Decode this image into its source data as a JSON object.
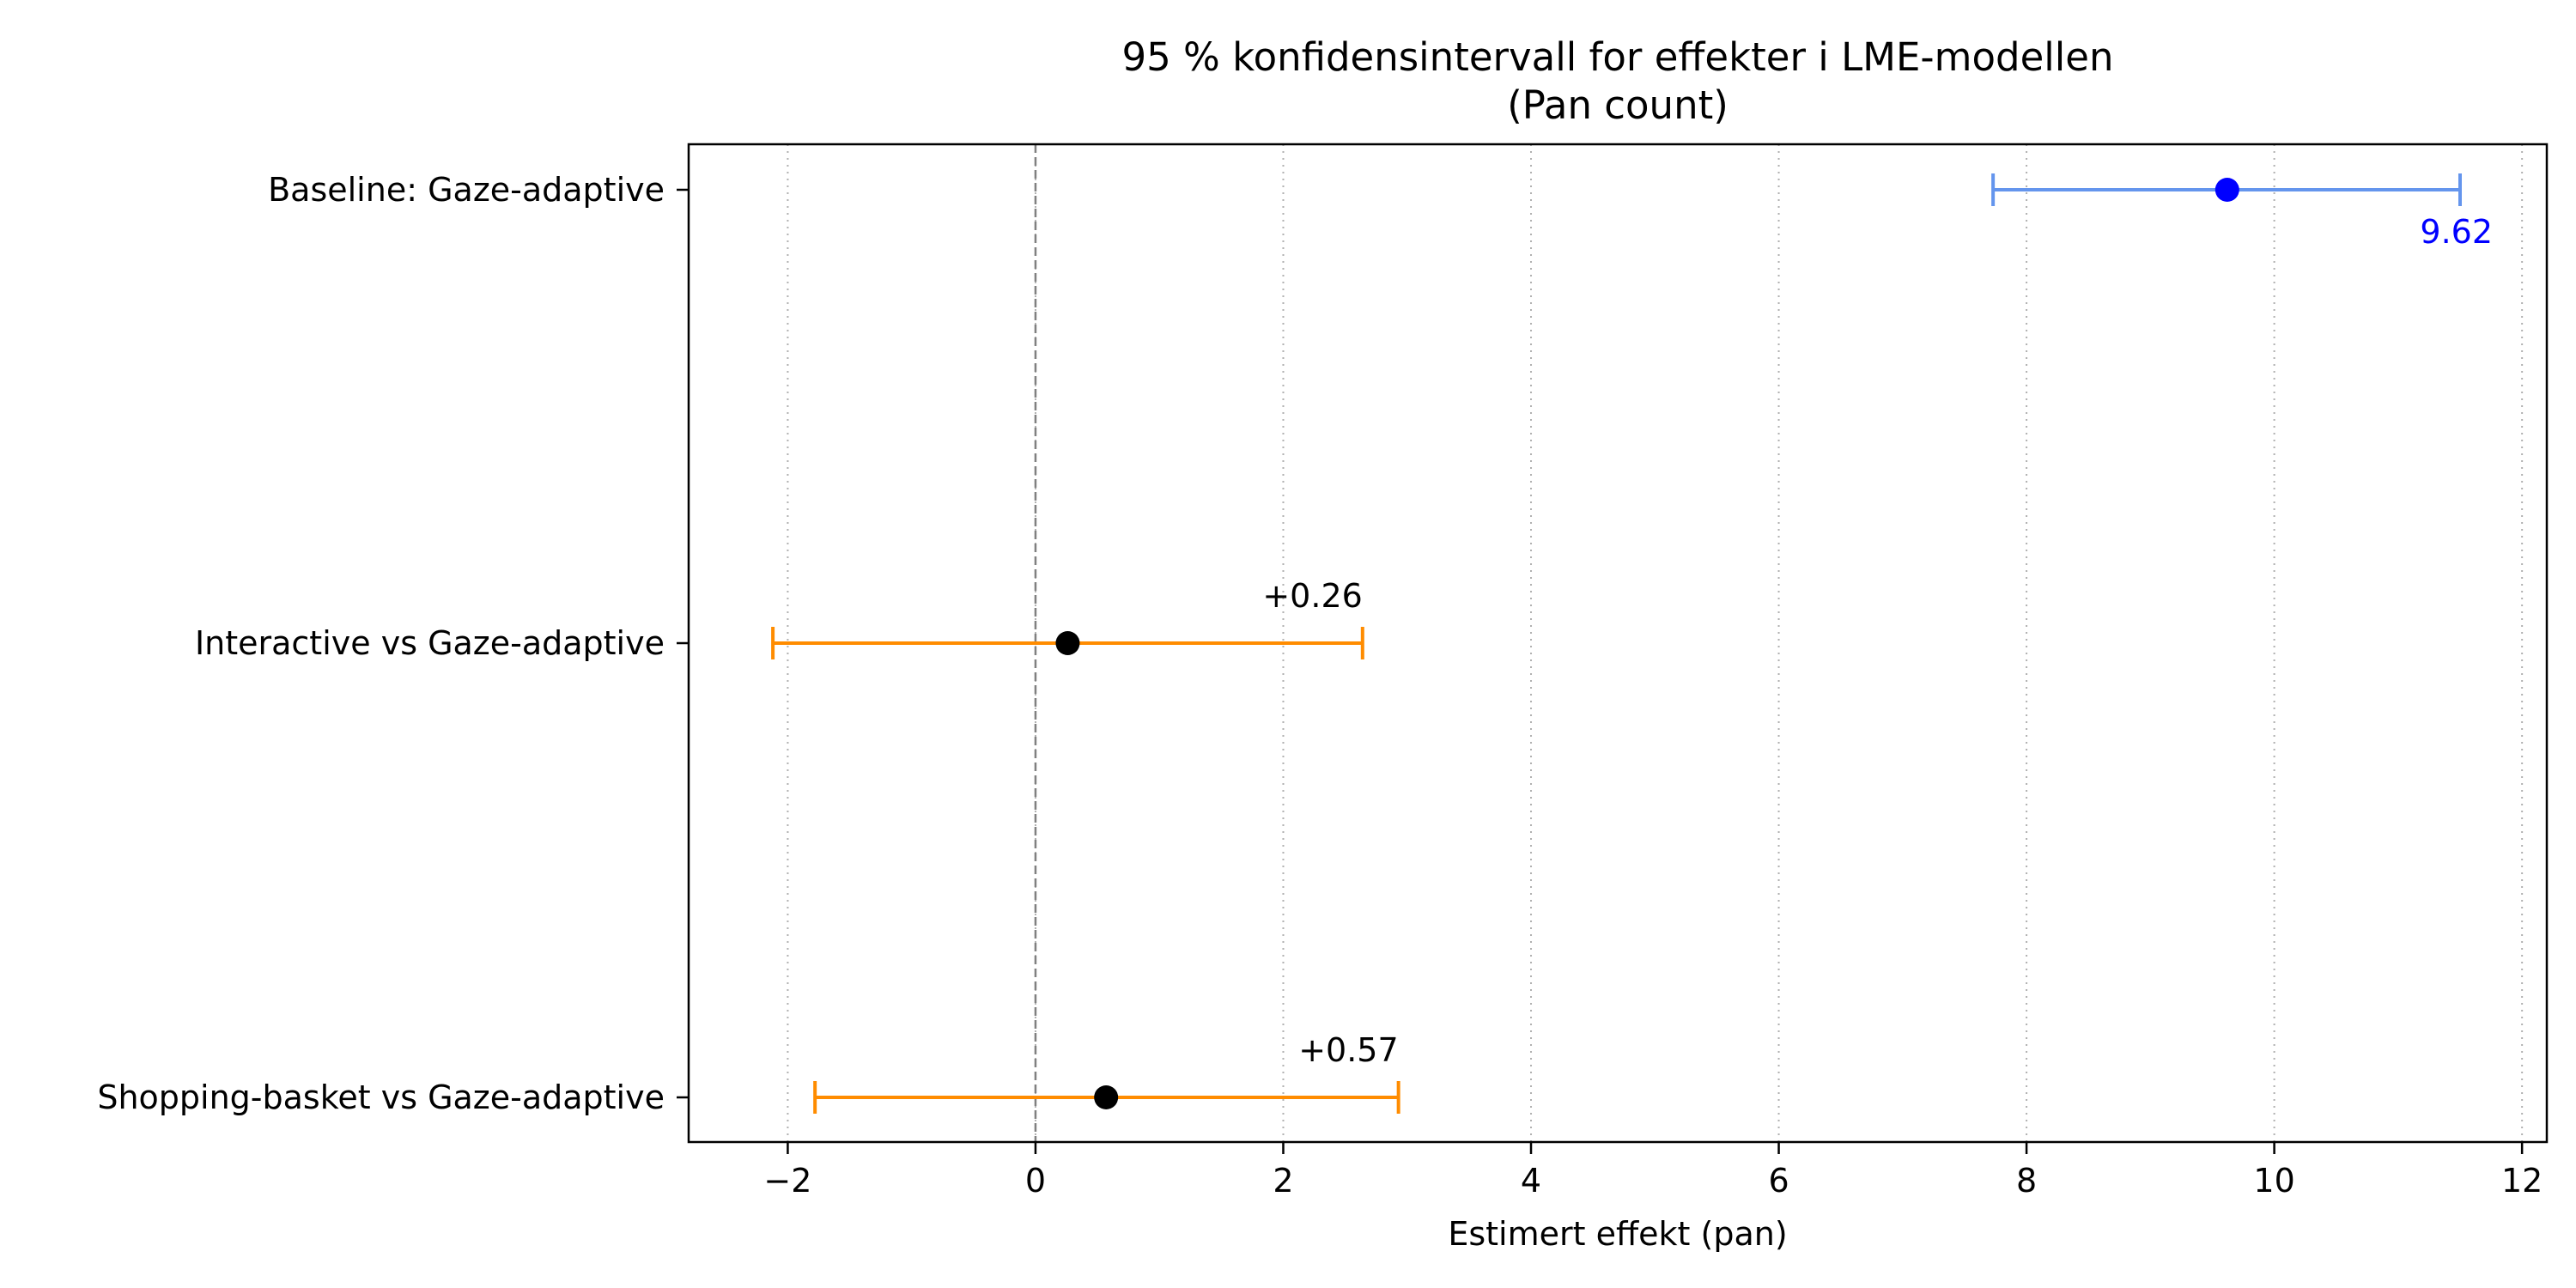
{
  "chart_data": {
    "type": "forest",
    "title": "95 % konfidensintervall for effekter i LME-modellen",
    "subtitle": "(Pan count)",
    "xlabel": "Estimert effekt (pan)",
    "ylabel": "",
    "xlim": [
      -2.8,
      12.2
    ],
    "xticks": [
      -2,
      0,
      2,
      4,
      6,
      8,
      10,
      12
    ],
    "xtick_labels": [
      "−2",
      "0",
      "2",
      "4",
      "6",
      "8",
      "10",
      "12"
    ],
    "grid": "x-axis dotted",
    "reference_line": 0,
    "rows": [
      {
        "label": "Baseline: Gaze-adaptive",
        "estimate": 9.62,
        "ci_low": 7.73,
        "ci_high": 11.5,
        "value_label": "9.62",
        "point_color": "#0000ff",
        "ci_color": "#6495ed",
        "label_color": "#0000ff"
      },
      {
        "label": "Interactive vs Gaze-adaptive",
        "estimate": 0.26,
        "ci_low": -2.12,
        "ci_high": 2.64,
        "value_label": "+0.26",
        "point_color": "#000000",
        "ci_color": "#ff8c00",
        "label_color": "#000000"
      },
      {
        "label": "Shopping-basket vs Gaze-adaptive",
        "estimate": 0.57,
        "ci_low": -1.78,
        "ci_high": 2.93,
        "value_label": "+0.57",
        "point_color": "#000000",
        "ci_color": "#ff8c00",
        "label_color": "#000000"
      }
    ]
  }
}
